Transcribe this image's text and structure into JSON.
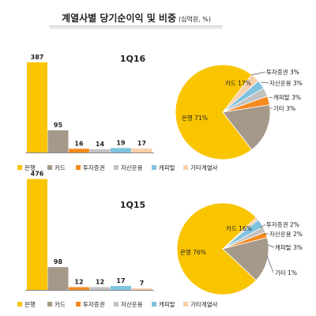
{
  "title": "계열사별 당기순이익 및 비중",
  "unit": "(십억원, %)",
  "colors": {
    "은행": "#f9c400",
    "카드": "#a5998a",
    "투자증권": "#f58a1f",
    "자산운용": "#c2c2c2",
    "캐피탈": "#7fc3df",
    "기타계열사": "#f9cfa8"
  },
  "chart_data": [
    {
      "type": "bar",
      "title": "1Q16",
      "categories": [
        "은행",
        "카드",
        "투자증권",
        "자산운용",
        "캐피탈",
        "기타계열사"
      ],
      "values": [
        387,
        95,
        16,
        14,
        19,
        17
      ]
    },
    {
      "type": "pie",
      "slices": [
        {
          "label": "은행 71%",
          "value": 71
        },
        {
          "label": "카드 17%",
          "value": 17
        },
        {
          "label": "투자증권 3%",
          "value": 3
        },
        {
          "label": "자산운용 3%",
          "value": 3
        },
        {
          "label": "캐피탈 3%",
          "value": 3
        },
        {
          "label": "기타 3%",
          "value": 3
        }
      ]
    },
    {
      "type": "bar",
      "title": "1Q15",
      "categories": [
        "은행",
        "카드",
        "투자증권",
        "자산운용",
        "캐피탈",
        "기타계열사"
      ],
      "values": [
        476,
        98,
        12,
        12,
        17,
        7
      ]
    },
    {
      "type": "pie",
      "slices": [
        {
          "label": "은행 76%",
          "value": 76
        },
        {
          "label": "카드 16%",
          "value": 16
        },
        {
          "label": "투자증권  2%",
          "value": 2
        },
        {
          "label": "자산운용  2%",
          "value": 2
        },
        {
          "label": "캐피탈  3%",
          "value": 3
        },
        {
          "label": "기타  1%",
          "value": 1
        }
      ]
    }
  ]
}
